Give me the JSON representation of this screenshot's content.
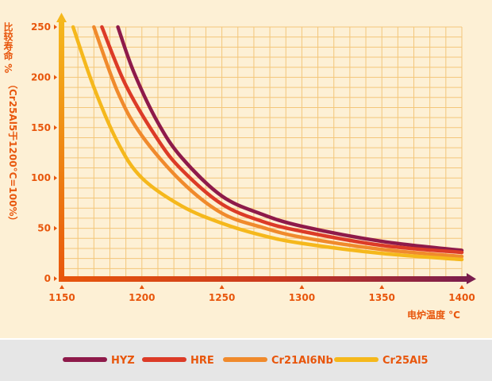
{
  "chart_data": {
    "type": "line",
    "xlabel": "电炉温度 °C",
    "ylabel_main": "比较寿命 %",
    "ylabel_sub": "（Cr25Al5于1200°C=100%）",
    "xlim": [
      1150,
      1400
    ],
    "ylim": [
      0,
      250
    ],
    "xticks": [
      "1150",
      "1200",
      "1250",
      "1300",
      "1350",
      "1400"
    ],
    "yticks": [
      "0",
      "50",
      "100",
      "150",
      "200",
      "250"
    ],
    "grid": true,
    "legend_position": "bottom",
    "series": [
      {
        "name": "HYZ",
        "color": "#8e1a4a",
        "x": [
          1185,
          1195,
          1210,
          1225,
          1250,
          1275,
          1300,
          1350,
          1400
        ],
        "y": [
          250,
          205,
          155,
          120,
          82,
          64,
          52,
          37,
          28
        ]
      },
      {
        "name": "HRE",
        "color": "#dc3b27",
        "x": [
          1175,
          1190,
          1210,
          1225,
          1250,
          1275,
          1300,
          1350,
          1400
        ],
        "y": [
          250,
          192,
          138,
          108,
          74,
          57,
          47,
          33,
          26
        ]
      },
      {
        "name": "Cr21Al6Nb",
        "color": "#f08a2c",
        "x": [
          1170,
          1185,
          1200,
          1225,
          1250,
          1275,
          1300,
          1350,
          1400
        ],
        "y": [
          250,
          185,
          142,
          96,
          65,
          51,
          41,
          29,
          22
        ]
      },
      {
        "name": "Cr25Al5",
        "color": "#f5b81c",
        "x": [
          1157,
          1170,
          1185,
          1200,
          1225,
          1250,
          1275,
          1300,
          1350,
          1400
        ],
        "y": [
          250,
          190,
          135,
          100,
          72,
          55,
          43,
          35,
          25,
          19
        ]
      }
    ]
  }
}
